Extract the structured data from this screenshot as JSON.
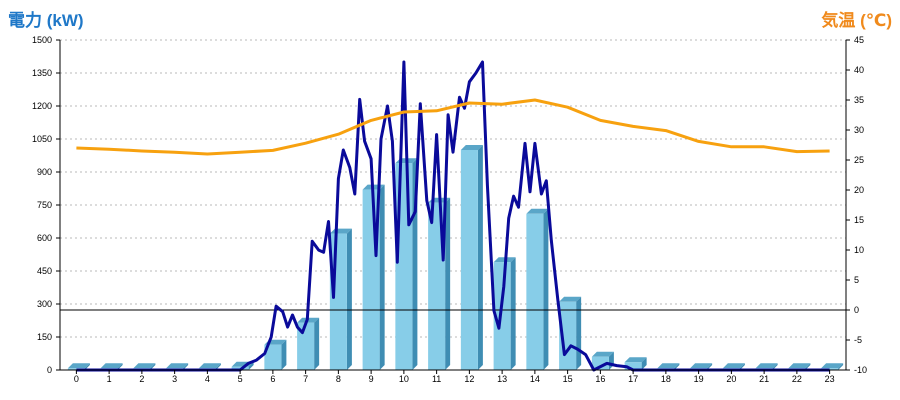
{
  "chart_data": {
    "type": "bar+line",
    "y_left_label": "電力 (kW)",
    "y_right_label": "気温 (℃)",
    "x_categories": [
      "0",
      "1",
      "2",
      "3",
      "4",
      "5",
      "6",
      "7",
      "8",
      "9",
      "10",
      "11",
      "12",
      "13",
      "14",
      "15",
      "16",
      "17",
      "18",
      "19",
      "20",
      "21",
      "22",
      "23"
    ],
    "y_left_ticks": [
      "0",
      "150",
      "300",
      "450",
      "600",
      "750",
      "900",
      "1050",
      "1200",
      "1350",
      "1500"
    ],
    "y_right_ticks": [
      "-10",
      "-5",
      "0",
      "5",
      "10",
      "15",
      "20",
      "25",
      "30",
      "35",
      "40",
      "45"
    ],
    "y_left_range": [
      0,
      1500
    ],
    "y_right_range": [
      -10,
      45
    ],
    "reference_line_temperature": 0,
    "grid": "horizontal dotted",
    "series": [
      {
        "kind": "bar",
        "axis": "left",
        "color": "#87cde8",
        "values": [
          8,
          8,
          8,
          8,
          8,
          15,
          115,
          215,
          620,
          820,
          940,
          760,
          1000,
          490,
          710,
          310,
          60,
          35,
          8,
          8,
          8,
          8,
          8,
          8
        ]
      },
      {
        "kind": "line",
        "axis": "left",
        "color": "#0a0a9a",
        "points": [
          [
            0,
            0
          ],
          [
            1,
            0
          ],
          [
            2,
            0
          ],
          [
            3,
            0
          ],
          [
            4,
            0
          ],
          [
            5,
            0
          ],
          [
            5.25,
            30
          ],
          [
            5.5,
            45
          ],
          [
            5.75,
            75
          ],
          [
            5.95,
            150
          ],
          [
            6.1,
            290
          ],
          [
            6.3,
            265
          ],
          [
            6.45,
            195
          ],
          [
            6.6,
            250
          ],
          [
            6.75,
            195
          ],
          [
            6.9,
            170
          ],
          [
            7.05,
            230
          ],
          [
            7.2,
            585
          ],
          [
            7.4,
            545
          ],
          [
            7.55,
            535
          ],
          [
            7.7,
            675
          ],
          [
            7.85,
            330
          ],
          [
            8.0,
            870
          ],
          [
            8.15,
            1000
          ],
          [
            8.35,
            920
          ],
          [
            8.5,
            800
          ],
          [
            8.65,
            1230
          ],
          [
            8.8,
            1040
          ],
          [
            9.0,
            960
          ],
          [
            9.15,
            520
          ],
          [
            9.3,
            1050
          ],
          [
            9.5,
            1200
          ],
          [
            9.65,
            1040
          ],
          [
            9.8,
            490
          ],
          [
            10.0,
            1400
          ],
          [
            10.15,
            660
          ],
          [
            10.35,
            720
          ],
          [
            10.5,
            1210
          ],
          [
            10.7,
            770
          ],
          [
            10.85,
            670
          ],
          [
            11.0,
            1070
          ],
          [
            11.2,
            500
          ],
          [
            11.35,
            1160
          ],
          [
            11.5,
            990
          ],
          [
            11.7,
            1240
          ],
          [
            11.85,
            1190
          ],
          [
            12.0,
            1310
          ],
          [
            12.2,
            1350
          ],
          [
            12.4,
            1400
          ],
          [
            12.55,
            840
          ],
          [
            12.75,
            270
          ],
          [
            12.9,
            190
          ],
          [
            13.05,
            380
          ],
          [
            13.2,
            690
          ],
          [
            13.35,
            790
          ],
          [
            13.5,
            740
          ],
          [
            13.7,
            1030
          ],
          [
            13.85,
            810
          ],
          [
            14.0,
            1030
          ],
          [
            14.2,
            800
          ],
          [
            14.35,
            860
          ],
          [
            14.5,
            590
          ],
          [
            14.7,
            320
          ],
          [
            14.9,
            70
          ],
          [
            15.1,
            110
          ],
          [
            15.3,
            95
          ],
          [
            15.55,
            70
          ],
          [
            15.8,
            0
          ],
          [
            16.2,
            30
          ],
          [
            16.5,
            20
          ],
          [
            16.8,
            15
          ],
          [
            17.0,
            0
          ],
          [
            18,
            0
          ],
          [
            19,
            0
          ],
          [
            20,
            0
          ],
          [
            21,
            0
          ],
          [
            22,
            0
          ],
          [
            23,
            0
          ]
        ]
      },
      {
        "kind": "line",
        "axis": "right",
        "color": "#f7a10f",
        "values": [
          27.0,
          26.8,
          26.5,
          26.3,
          26.0,
          26.3,
          26.6,
          27.8,
          29.3,
          31.6,
          33.0,
          33.2,
          34.5,
          34.3,
          35.0,
          33.8,
          31.6,
          30.6,
          29.9,
          28.1,
          27.2,
          27.2,
          26.4,
          26.5
        ]
      }
    ]
  }
}
